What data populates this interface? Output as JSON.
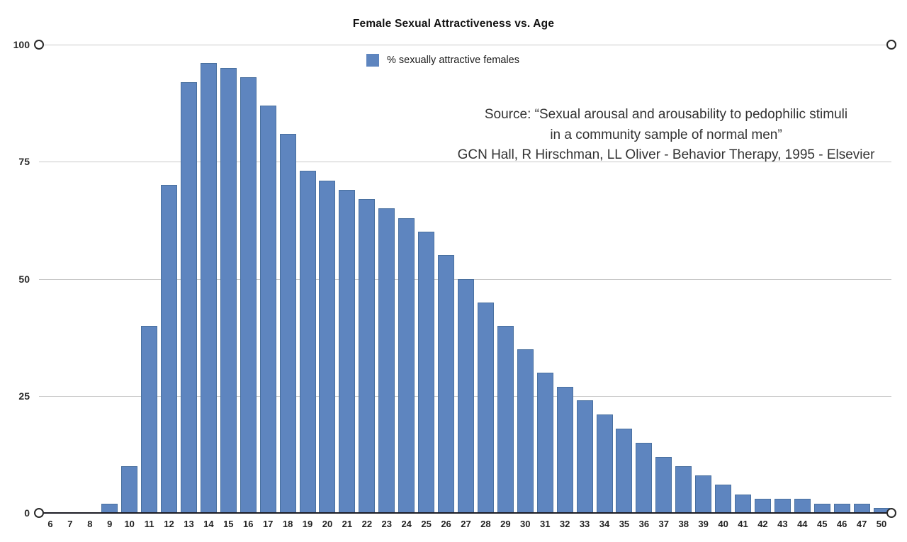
{
  "title": "Female Sexual Attractiveness vs. Age",
  "legend": {
    "label": "% sexually attractive females",
    "swatch_color": "#5e85bf"
  },
  "source": {
    "line1": "Source: “Sexual arousal and arousability to pedophilic stimuli",
    "line2": "in a community sample of normal men”",
    "line3": "GCN Hall, R Hirschman, LL Oliver - Behavior Therapy, 1995 - Elsevier"
  },
  "chart_data": {
    "type": "bar",
    "title": "Female Sexual Attractiveness vs. Age",
    "legend_entries": [
      "% sexually attractive females"
    ],
    "legend_position": "top-center",
    "xlabel": "",
    "ylabel": "",
    "ylim": [
      0,
      100
    ],
    "yticks": [
      0,
      25,
      50,
      75,
      100
    ],
    "grid": true,
    "categories": [
      "6",
      "7",
      "8",
      "9",
      "10",
      "11",
      "12",
      "13",
      "14",
      "15",
      "16",
      "17",
      "18",
      "19",
      "20",
      "21",
      "22",
      "23",
      "24",
      "25",
      "26",
      "27",
      "28",
      "29",
      "30",
      "31",
      "32",
      "33",
      "34",
      "35",
      "36",
      "37",
      "38",
      "39",
      "40",
      "41",
      "42",
      "43",
      "44",
      "45",
      "46",
      "47",
      "50"
    ],
    "values": [
      0,
      0,
      0,
      2,
      10,
      40,
      70,
      92,
      96,
      95,
      93,
      87,
      81,
      73,
      71,
      69,
      67,
      65,
      63,
      60,
      55,
      50,
      45,
      40,
      35,
      30,
      27,
      24,
      21,
      18,
      15,
      12,
      10,
      8,
      6,
      4,
      3,
      3,
      3,
      2,
      2,
      2,
      1
    ],
    "colors": {
      "bar_fill": "#5e85bf",
      "bar_border": "#49709f",
      "gridline": "#c9c9c9",
      "axis_line": "#1c1c24",
      "handle_border": "#2a2a2a",
      "text": "#222222"
    }
  }
}
